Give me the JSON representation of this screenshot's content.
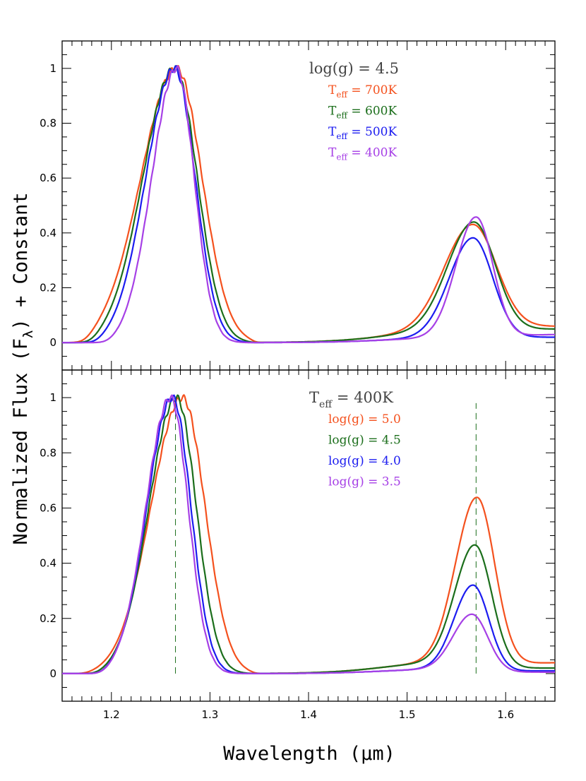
{
  "chart_data": [
    {
      "type": "line",
      "panel": "top",
      "xlim": [
        1.15,
        1.65
      ],
      "ylim": [
        -0.1,
        1.1
      ],
      "yticks": [
        "0",
        "0.2",
        "0.4",
        "0.6",
        "0.8",
        "1"
      ],
      "legend": {
        "heading": "log(g)  =  4.5",
        "placement": "top-right",
        "items": [
          {
            "sym": "T",
            "sub": "eff",
            "rest": " = 700K",
            "color": "#f4511e"
          },
          {
            "sym": "T",
            "sub": "eff",
            "rest": " = 600K",
            "color": "#1b6e1b"
          },
          {
            "sym": "T",
            "sub": "eff",
            "rest": " = 500K",
            "color": "#1c1cf0"
          },
          {
            "sym": "T",
            "sub": "eff",
            "rest": " = 400K",
            "color": "#a640e6"
          }
        ]
      },
      "series": [
        {
          "name": "Teff = 700K",
          "color": "#f4511e",
          "jc": 1.266,
          "jw": 0.036,
          "hc": 1.567,
          "ha": 0.4,
          "hw": 0.024,
          "lo": 1.175,
          "hi": 1.345,
          "red": 0.06
        },
        {
          "name": "Teff = 600K",
          "color": "#1b6e1b",
          "jc": 1.264,
          "jw": 0.032,
          "hc": 1.568,
          "ha": 0.41,
          "hw": 0.022,
          "lo": 1.18,
          "hi": 1.342,
          "red": 0.05
        },
        {
          "name": "Teff = 500K",
          "color": "#1c1cf0",
          "jc": 1.264,
          "jw": 0.029,
          "hc": 1.567,
          "ha": 0.37,
          "hw": 0.02,
          "lo": 1.185,
          "hi": 1.34,
          "red": 0.02
        },
        {
          "name": "Teff = 400K",
          "color": "#a640e6",
          "jc": 1.266,
          "jw": 0.025,
          "hc": 1.57,
          "ha": 0.445,
          "hw": 0.017,
          "lo": 1.195,
          "hi": 1.337,
          "red": 0.03
        }
      ]
    },
    {
      "type": "line",
      "panel": "bottom",
      "xlim": [
        1.15,
        1.65
      ],
      "ylim": [
        -0.1,
        1.1
      ],
      "yticks": [
        "0",
        "0.2",
        "0.4",
        "0.6",
        "0.8",
        "1"
      ],
      "xticks": [
        "1.2",
        "1.3",
        "1.4",
        "1.5",
        "1.6"
      ],
      "reference_lines_x": [
        1.265,
        1.57
      ],
      "legend": {
        "heading_sym": "T",
        "heading_sub": "eff",
        "heading_rest": " = 400K",
        "placement": "top-right",
        "items": [
          {
            "text": "log(g)  =  5.0",
            "color": "#f4511e"
          },
          {
            "text": "log(g)  =  4.5",
            "color": "#1b6e1b"
          },
          {
            "text": "log(g)  =  4.0",
            "color": "#1c1cf0"
          },
          {
            "text": "log(g)  =  3.5",
            "color": "#a640e6"
          }
        ]
      },
      "series": [
        {
          "name": "log(g) = 5.0",
          "color": "#f4511e",
          "jc": 1.272,
          "jw": 0.032,
          "hc": 1.571,
          "ha": 0.61,
          "hw": 0.018,
          "lo": 1.175,
          "hi": 1.345,
          "red": 0.04
        },
        {
          "name": "log(g) = 4.5",
          "color": "#1b6e1b",
          "jc": 1.266,
          "jw": 0.028,
          "hc": 1.569,
          "ha": 0.44,
          "hw": 0.017,
          "lo": 1.185,
          "hi": 1.342,
          "red": 0.02
        },
        {
          "name": "log(g) = 4.0",
          "color": "#1c1cf0",
          "jc": 1.262,
          "jw": 0.026,
          "hc": 1.567,
          "ha": 0.31,
          "hw": 0.016,
          "lo": 1.19,
          "hi": 1.34,
          "red": 0.01
        },
        {
          "name": "log(g) = 3.5",
          "color": "#a640e6",
          "jc": 1.26,
          "jw": 0.025,
          "hc": 1.566,
          "ha": 0.205,
          "hw": 0.016,
          "lo": 1.19,
          "hi": 1.338,
          "red": 0.005
        }
      ]
    }
  ],
  "axes": {
    "xlabel": "Wavelength (μm)",
    "ylabel_pre": "Normalized Flux (F",
    "ylabel_sub": "λ",
    "ylabel_post": ") + Constant"
  }
}
